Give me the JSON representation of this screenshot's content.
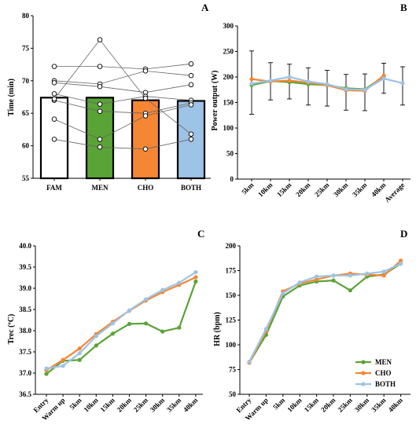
{
  "chart_data": [
    {
      "panel": "A",
      "type": "bar",
      "ylabel": "Time (min)",
      "ylim": [
        55,
        80
      ],
      "yticks": [
        55,
        60,
        65,
        70,
        75,
        80
      ],
      "categories": [
        "FAM",
        "MEN",
        "CHO",
        "BOTH"
      ],
      "values": [
        67.4,
        67.4,
        67.0,
        66.9
      ],
      "bar_colors": [
        "#ffffff",
        "#5aa336",
        "#f58634",
        "#9dc3e6"
      ],
      "individuals": [
        [
          72.2,
          72.2,
          71.8,
          72.6
        ],
        [
          70.0,
          69.5,
          71.5,
          70.8
        ],
        [
          69.7,
          69.1,
          68.2,
          69.4
        ],
        [
          68.0,
          66.4,
          67.6,
          67.0
        ],
        [
          67.0,
          65.3,
          65.0,
          66.6
        ],
        [
          64.1,
          61.0,
          64.6,
          66.3
        ],
        [
          61.0,
          59.8,
          59.5,
          61.0
        ],
        [
          67.2,
          76.3,
          67.3,
          61.8
        ]
      ]
    },
    {
      "panel": "B",
      "type": "line",
      "ylabel": "Power output (W)",
      "ylim": [
        0,
        300
      ],
      "yticks": [
        0,
        50,
        100,
        150,
        200,
        250,
        300
      ],
      "categories": [
        "5km",
        "10km",
        "15km",
        "20km",
        "25km",
        "30km",
        "35km",
        "40km",
        "Average"
      ],
      "series": [
        {
          "name": "MEN",
          "color": "#5aa336",
          "values": [
            184,
            192,
            190,
            186,
            184,
            178,
            176,
            201,
            null
          ]
        },
        {
          "name": "CHO",
          "color": "#f58634",
          "values": [
            196,
            191,
            193,
            189,
            184,
            174,
            173,
            203,
            null
          ]
        },
        {
          "name": "BOTH",
          "color": "#9dc3e6",
          "values": [
            187,
            193,
            200,
            191,
            186,
            176,
            175,
            197,
            188
          ]
        }
      ],
      "error_bars": [
        [
          127,
          251
        ],
        [
          155,
          228
        ],
        [
          157,
          225
        ],
        [
          145,
          218
        ],
        [
          143,
          213
        ],
        [
          135,
          205
        ],
        [
          134,
          206
        ],
        [
          168,
          227
        ],
        [
          145,
          220
        ]
      ]
    },
    {
      "panel": "C",
      "type": "line",
      "ylabel": "Trec (ºC)",
      "ylim": [
        36.5,
        40.0
      ],
      "yticks": [
        "36.5",
        "37.0",
        "37.5",
        "38.0",
        "38.5",
        "39.0",
        "39.5",
        "40.0"
      ],
      "categories": [
        "Entry",
        "Warm up",
        "5km",
        "10km",
        "15km",
        "20km",
        "25km",
        "30km",
        "35km",
        "40km"
      ],
      "series": [
        {
          "name": "MEN",
          "color": "#5aa336",
          "values": [
            36.98,
            37.29,
            37.31,
            37.65,
            37.93,
            38.16,
            38.17,
            37.98,
            38.07,
            39.16
          ]
        },
        {
          "name": "CHO",
          "color": "#f58634",
          "values": [
            37.07,
            37.31,
            37.58,
            37.92,
            38.21,
            38.47,
            38.71,
            38.91,
            39.08,
            39.26
          ]
        },
        {
          "name": "BOTH",
          "color": "#9dc3e6",
          "values": [
            37.11,
            37.17,
            37.47,
            37.87,
            38.17,
            38.48,
            38.74,
            38.96,
            39.13,
            39.38
          ]
        }
      ]
    },
    {
      "panel": "D",
      "type": "line",
      "ylabel": "HR (bpm)",
      "ylim": [
        50,
        200
      ],
      "yticks": [
        50,
        75,
        100,
        125,
        150,
        175,
        200
      ],
      "categories": [
        "Entry",
        "Warm up",
        "5km",
        "10km",
        "15km",
        "20km",
        "25km",
        "30km",
        "35km",
        "40km"
      ],
      "series": [
        {
          "name": "MEN",
          "color": "#5aa336",
          "values": [
            82,
            110,
            149,
            160,
            164,
            165,
            155,
            169,
            171,
            182
          ]
        },
        {
          "name": "CHO",
          "color": "#f58634",
          "values": [
            82,
            114,
            154,
            162,
            166,
            170,
            172,
            171,
            170,
            185
          ]
        },
        {
          "name": "BOTH",
          "color": "#9dc3e6",
          "values": [
            83,
            116,
            152,
            163,
            169,
            170,
            170,
            172,
            174,
            182
          ]
        }
      ],
      "legend": [
        "MEN",
        "CHO",
        "BOTH"
      ],
      "legend_position": "bottom-right"
    }
  ]
}
